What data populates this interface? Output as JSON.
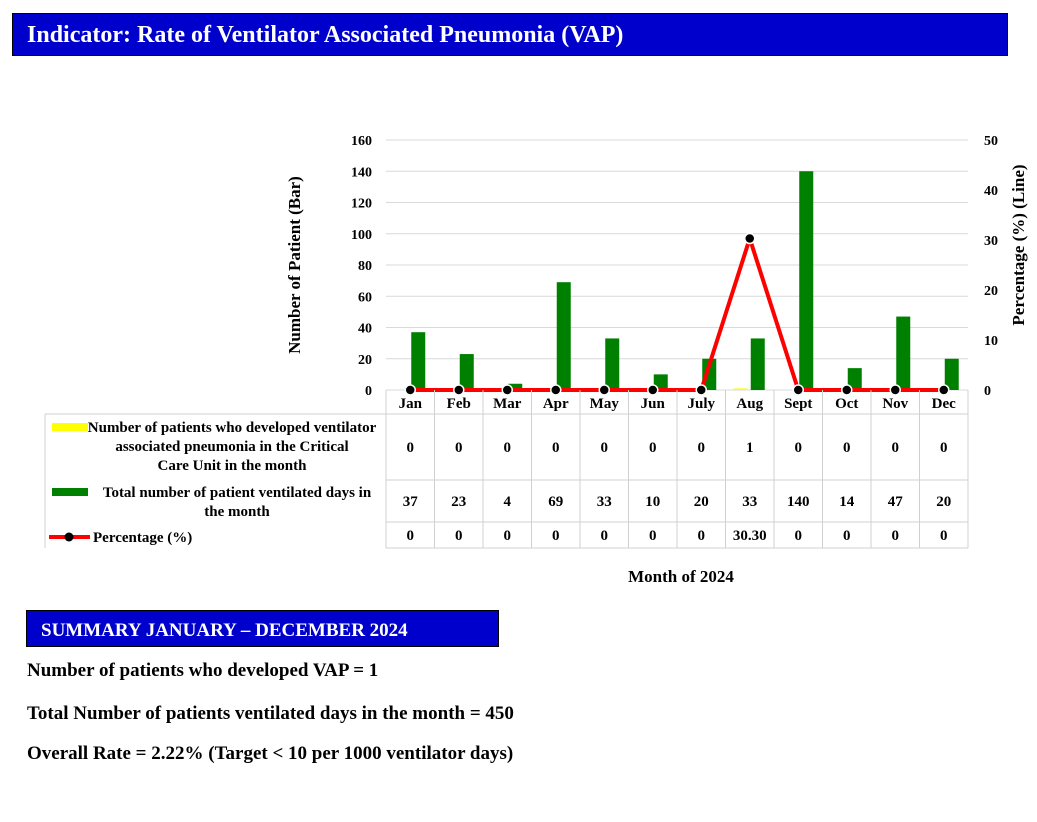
{
  "header": {
    "title": "Indicator: Rate of Ventilator Associated Pneumonia (VAP)"
  },
  "colors": {
    "header_bg": "#0000cc",
    "vap_bar": "#ffff00",
    "ventilated_bar": "#008000",
    "percentage_line": "#ff0000",
    "marker": "#000000"
  },
  "chart_data": {
    "type": "bar",
    "title": "",
    "xlabel": "Month of 2024",
    "ylabel": "Number of Patient (Bar)",
    "y2label": "Percentage (%) (Line)",
    "ylim": [
      0,
      160
    ],
    "y_ticks": [
      0,
      20,
      40,
      60,
      80,
      100,
      120,
      140,
      160
    ],
    "y2lim": [
      0,
      50
    ],
    "y2_ticks": [
      0,
      10,
      20,
      30,
      40,
      50
    ],
    "grid": true,
    "categories": [
      "Jan",
      "Feb",
      "Mar",
      "Apr",
      "May",
      "Jun",
      "July",
      "Aug",
      "Sept",
      "Oct",
      "Nov",
      "Dec"
    ],
    "series": [
      {
        "name": "Number of patients who developed ventilator associated pneumonia in the Critical Care Unit in the month",
        "type": "bar",
        "axis": "left",
        "values": [
          0,
          0,
          0,
          0,
          0,
          0,
          0,
          1,
          0,
          0,
          0,
          0
        ]
      },
      {
        "name": "Total number of patient ventilated days in the month",
        "type": "bar",
        "axis": "left",
        "values": [
          37,
          23,
          4,
          69,
          33,
          10,
          20,
          33,
          140,
          14,
          47,
          20
        ]
      },
      {
        "name": "Percentage (%)",
        "type": "line",
        "axis": "right",
        "values": [
          0,
          0,
          0,
          0,
          0,
          0,
          0,
          30.3,
          0,
          0,
          0,
          0
        ]
      }
    ],
    "table": {
      "rows": [
        {
          "label": "Number of patients who developed ventilator associated pneumonia in the Critical Care Unit in the month",
          "values": [
            "0",
            "0",
            "0",
            "0",
            "0",
            "0",
            "0",
            "1",
            "0",
            "0",
            "0",
            "0"
          ]
        },
        {
          "label": "Total number of patient ventilated days in the month",
          "values": [
            "37",
            "23",
            "4",
            "69",
            "33",
            "10",
            "20",
            "33",
            "140",
            "14",
            "47",
            "20"
          ]
        },
        {
          "label": "Percentage (%)",
          "values": [
            "0",
            "0",
            "0",
            "0",
            "0",
            "0",
            "0",
            "30.30",
            "0",
            "0",
            "0",
            "0"
          ]
        }
      ]
    }
  },
  "summary": {
    "heading": "SUMMARY JANUARY – DECEMBER 2024",
    "lines": [
      "Number of patients who developed VAP = 1",
      "Total Number of patients ventilated days in the month = 450",
      "Overall Rate = 2.22% (Target < 10 per 1000 ventilator days)"
    ]
  }
}
